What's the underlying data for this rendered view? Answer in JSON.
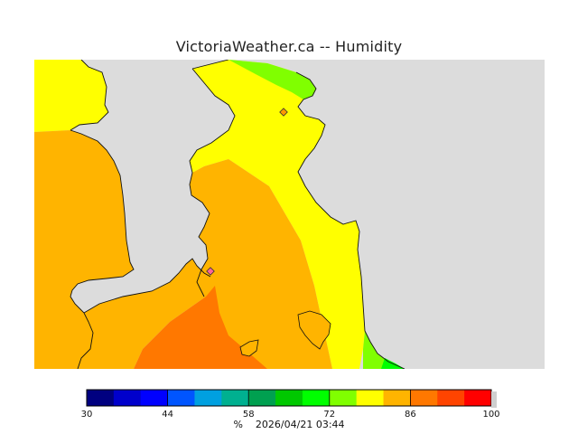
{
  "header": {
    "title": "VictoriaWeather.ca -- Humidity"
  },
  "legend": {
    "unit": "%",
    "timestamp": "2026/04/21 03:44",
    "min": 30,
    "max": 100,
    "tick_labels": [
      "30",
      "44",
      "58",
      "72",
      "86",
      "100"
    ],
    "colors": [
      "#000080",
      "#0000cc",
      "#0000ff",
      "#0055ff",
      "#00a0e0",
      "#00b090",
      "#00a050",
      "#00c800",
      "#00ff00",
      "#80ff00",
      "#ffff00",
      "#ffb400",
      "#ff7800",
      "#ff4400",
      "#ff0000"
    ]
  },
  "map": {
    "land_color": "#dcdcdc",
    "fill_colors": {
      "humid_yellow": "#ffff00",
      "humid_orange": "#ffb400",
      "humid_dark_orange": "#ff7800",
      "humid_green": "#80ff00",
      "humid_bright_green": "#00ff00"
    },
    "station_markers": [
      {
        "name": "station-north"
      },
      {
        "name": "station-south"
      }
    ]
  }
}
